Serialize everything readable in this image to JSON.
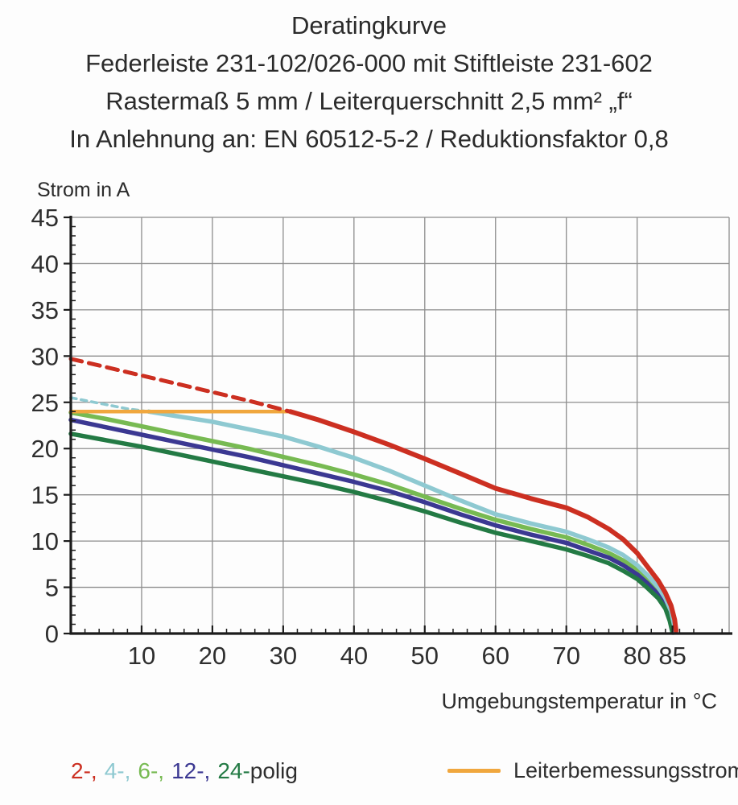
{
  "header": {
    "lines": [
      "Deratingkurve",
      "Federleiste 231-102/026-000 mit Stiftleiste 231-602",
      "Rastermaß 5 mm / Leiterquerschnitt 2,5 mm² „f“",
      "In Anlehnung an: EN 60512-5-2 / Reduktionsfaktor 0,8"
    ]
  },
  "chart_data": {
    "type": "line",
    "title": "Deratingkurve",
    "ylabel": "Strom in A",
    "xlabel": "Umgebungstemperatur in °C",
    "xlim": [
      0,
      93
    ],
    "ylim": [
      0,
      45
    ],
    "grid": true,
    "x_gridlines": [
      10,
      20,
      30,
      40,
      50,
      60,
      70,
      80
    ],
    "y_gridlines": [
      5,
      10,
      15,
      20,
      25,
      30,
      35,
      40,
      45
    ],
    "x_tick_labels": [
      10,
      20,
      30,
      40,
      50,
      60,
      70,
      80,
      85
    ],
    "y_tick_labels": [
      0,
      5,
      10,
      15,
      20,
      25,
      30,
      35,
      40,
      45
    ],
    "x_minor_step": 2,
    "y_minor_step": 1,
    "legend_position": "bottom",
    "colors": {
      "grid": "#8d8d8d",
      "axis": "#1c1c1c",
      "tick_text": "#2e2e2e"
    },
    "series": [
      {
        "id": "6-polig",
        "name": "6-polig",
        "color": "#77ba52",
        "width": 5.5,
        "points": [
          [
            0,
            23.9
          ],
          [
            5,
            23.2
          ],
          [
            10,
            22.4
          ],
          [
            15,
            21.6
          ],
          [
            20,
            20.8
          ],
          [
            25,
            20.0
          ],
          [
            30,
            19.1
          ],
          [
            35,
            18.2
          ],
          [
            40,
            17.2
          ],
          [
            45,
            16.1
          ],
          [
            50,
            14.8
          ],
          [
            55,
            13.5
          ],
          [
            60,
            12.3
          ],
          [
            65,
            11.3
          ],
          [
            70,
            10.4
          ],
          [
            73,
            9.6
          ],
          [
            76,
            8.7
          ],
          [
            78,
            7.9
          ],
          [
            80,
            6.9
          ],
          [
            81.5,
            5.9
          ],
          [
            83,
            4.6
          ],
          [
            84,
            3.4
          ],
          [
            84.8,
            2.0
          ],
          [
            85.1,
            0.8
          ],
          [
            85.2,
            0.1
          ]
        ]
      },
      {
        "id": "12-polig",
        "name": "12-polig",
        "color": "#3b3892",
        "width": 5.5,
        "points": [
          [
            0,
            23.1
          ],
          [
            5,
            22.3
          ],
          [
            10,
            21.5
          ],
          [
            15,
            20.7
          ],
          [
            20,
            19.9
          ],
          [
            25,
            19.1
          ],
          [
            30,
            18.2
          ],
          [
            35,
            17.3
          ],
          [
            40,
            16.4
          ],
          [
            45,
            15.4
          ],
          [
            50,
            14.2
          ],
          [
            55,
            12.9
          ],
          [
            60,
            11.7
          ],
          [
            65,
            10.7
          ],
          [
            70,
            9.8
          ],
          [
            73,
            9.0
          ],
          [
            76,
            8.2
          ],
          [
            78,
            7.4
          ],
          [
            80,
            6.4
          ],
          [
            81.5,
            5.4
          ],
          [
            83,
            4.2
          ],
          [
            84,
            3.0
          ],
          [
            84.7,
            1.7
          ],
          [
            85,
            0.6
          ],
          [
            85.1,
            0.1
          ]
        ]
      },
      {
        "id": "24-polig",
        "name": "24-polig",
        "color": "#237a44",
        "width": 5.5,
        "points": [
          [
            0,
            21.6
          ],
          [
            5,
            20.9
          ],
          [
            10,
            20.2
          ],
          [
            15,
            19.4
          ],
          [
            20,
            18.6
          ],
          [
            25,
            17.8
          ],
          [
            30,
            17.0
          ],
          [
            35,
            16.2
          ],
          [
            40,
            15.3
          ],
          [
            45,
            14.3
          ],
          [
            50,
            13.2
          ],
          [
            55,
            12.0
          ],
          [
            60,
            10.9
          ],
          [
            65,
            10.0
          ],
          [
            70,
            9.1
          ],
          [
            73,
            8.4
          ],
          [
            76,
            7.6
          ],
          [
            78,
            6.8
          ],
          [
            80,
            5.9
          ],
          [
            81.5,
            4.9
          ],
          [
            83,
            3.8
          ],
          [
            84,
            2.7
          ],
          [
            84.6,
            1.4
          ],
          [
            84.9,
            0.4
          ],
          [
            85,
            0.1
          ]
        ]
      },
      {
        "id": "4-polig-dashed",
        "name": "4-polig (oberhalb Leiterbemessungsstrom)",
        "color": "#8ec9d1",
        "width": 3.5,
        "dash": [
          7,
          6
        ],
        "points": [
          [
            0,
            25.5
          ],
          [
            4,
            24.9
          ],
          [
            8,
            24.3
          ],
          [
            11,
            24.0
          ]
        ]
      },
      {
        "id": "4-polig",
        "name": "4-polig",
        "color": "#8ec9d1",
        "width": 5.5,
        "points": [
          [
            11,
            24.0
          ],
          [
            15,
            23.5
          ],
          [
            20,
            22.9
          ],
          [
            25,
            22.1
          ],
          [
            30,
            21.3
          ],
          [
            35,
            20.2
          ],
          [
            40,
            19.0
          ],
          [
            45,
            17.6
          ],
          [
            50,
            16.0
          ],
          [
            55,
            14.4
          ],
          [
            60,
            12.9
          ],
          [
            65,
            11.9
          ],
          [
            70,
            11.0
          ],
          [
            73,
            10.2
          ],
          [
            76,
            9.3
          ],
          [
            78,
            8.5
          ],
          [
            80,
            7.4
          ],
          [
            81.5,
            6.3
          ],
          [
            83,
            5.0
          ],
          [
            84,
            3.8
          ],
          [
            84.8,
            2.4
          ],
          [
            85.2,
            1.0
          ],
          [
            85.3,
            0.2
          ]
        ]
      },
      {
        "id": "leiterbemessungsstrom",
        "name": "Leiterbemessungsstrom",
        "color": "#f0a73e",
        "width": 4.5,
        "value": 24,
        "points": [
          [
            0,
            24
          ],
          [
            31,
            24
          ]
        ]
      },
      {
        "id": "2-polig-dashed",
        "name": "2-polig (oberhalb Leiterbemessungsstrom)",
        "color": "#cc2f21",
        "width": 5,
        "dash": [
          14,
          9
        ],
        "points": [
          [
            0,
            29.7
          ],
          [
            5,
            28.8
          ],
          [
            10,
            27.9
          ],
          [
            15,
            27.0
          ],
          [
            20,
            26.1
          ],
          [
            25,
            25.2
          ],
          [
            28,
            24.6
          ],
          [
            31,
            24.0
          ]
        ]
      },
      {
        "id": "2-polig",
        "name": "2-polig",
        "color": "#cc2f21",
        "width": 6,
        "points": [
          [
            31,
            24.0
          ],
          [
            35,
            23.1
          ],
          [
            40,
            21.8
          ],
          [
            45,
            20.4
          ],
          [
            50,
            18.9
          ],
          [
            55,
            17.3
          ],
          [
            60,
            15.7
          ],
          [
            65,
            14.6
          ],
          [
            70,
            13.6
          ],
          [
            73,
            12.6
          ],
          [
            76,
            11.3
          ],
          [
            78,
            10.2
          ],
          [
            80,
            8.7
          ],
          [
            81.5,
            7.2
          ],
          [
            83,
            5.7
          ],
          [
            84,
            4.4
          ],
          [
            84.8,
            3.0
          ],
          [
            85.3,
            1.5
          ],
          [
            85.5,
            0.3
          ]
        ]
      }
    ]
  },
  "legend": {
    "poles": [
      {
        "label": "2-,",
        "color": "#cc2f21"
      },
      {
        "label": "4-,",
        "color": "#8ec9d1"
      },
      {
        "label": "6-,",
        "color": "#77ba52"
      },
      {
        "label": "12-,",
        "color": "#3b3892"
      },
      {
        "label": "24-",
        "color": "#237a44"
      }
    ],
    "poles_suffix": "polig",
    "rated": {
      "label": "Leiterbemessungsstrom",
      "color": "#f0a73e"
    }
  }
}
